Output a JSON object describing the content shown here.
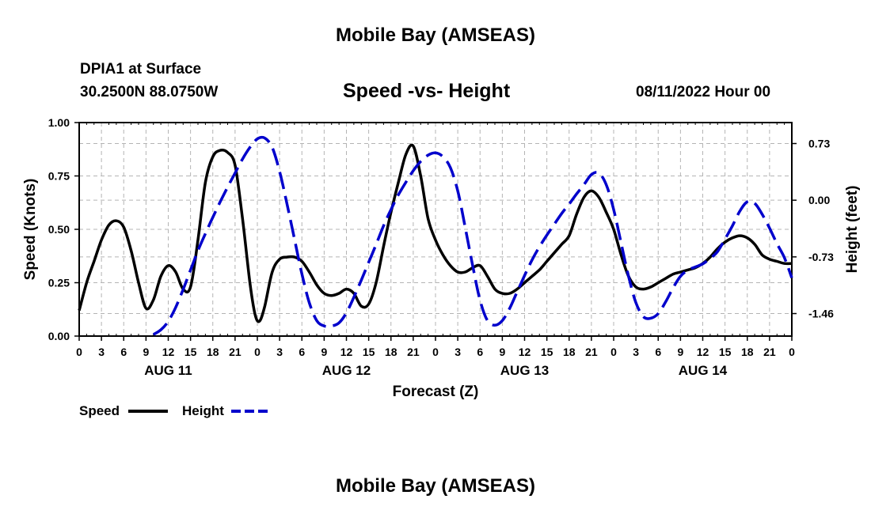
{
  "header": {
    "title": "Mobile Bay (AMSEAS)",
    "station": "DPIA1 at Surface",
    "coords": "30.2500N  88.0750W",
    "subtitle": "Speed -vs- Height",
    "datetime": "08/11/2022 Hour 00"
  },
  "footer": {
    "title": "Mobile Bay (AMSEAS)"
  },
  "chart_data": {
    "type": "line",
    "title": "Speed -vs- Height",
    "xlabel": "Forecast (Z)",
    "ylabel": "Speed (Knots)",
    "y2label": "Height (feet)",
    "xlim": [
      0,
      96
    ],
    "ylim": [
      0,
      1
    ],
    "y2lim": [
      -1.75,
      1.0
    ],
    "x_tick_values": [
      0,
      3,
      6,
      9,
      12,
      15,
      18,
      21,
      24,
      27,
      30,
      33,
      36,
      39,
      42,
      45,
      48,
      51,
      54,
      57,
      60,
      63,
      66,
      69,
      72,
      75,
      78,
      81,
      84,
      87,
      90,
      93,
      96
    ],
    "x_tick_labels": [
      "0",
      "3",
      "6",
      "9",
      "12",
      "15",
      "18",
      "21",
      "0",
      "3",
      "6",
      "9",
      "12",
      "15",
      "18",
      "21",
      "0",
      "3",
      "6",
      "9",
      "12",
      "15",
      "18",
      "21",
      "0",
      "3",
      "6",
      "9",
      "12",
      "15",
      "18",
      "21",
      "0"
    ],
    "y_ticks": [
      "0.00",
      "0.25",
      "0.50",
      "0.75",
      "1.00"
    ],
    "y_tick_values": [
      0,
      0.25,
      0.5,
      0.75,
      1.0
    ],
    "y2_ticks": [
      "-1.46",
      "-0.73",
      "0.00",
      "0.73"
    ],
    "y2_tick_values": [
      -1.46,
      -0.73,
      0.0,
      0.73
    ],
    "day_labels": [
      {
        "label": "AUG 11",
        "x": 12
      },
      {
        "label": "AUG 12",
        "x": 36
      },
      {
        "label": "AUG 13",
        "x": 60
      },
      {
        "label": "AUG 14",
        "x": 84
      }
    ],
    "grid": true,
    "legend_position": "bottom-left",
    "series": [
      {
        "name": "Speed",
        "axis": "left",
        "color": "#000000",
        "dash": "solid",
        "points": [
          [
            0,
            0.12
          ],
          [
            1,
            0.25
          ],
          [
            2,
            0.35
          ],
          [
            3,
            0.45
          ],
          [
            4,
            0.52
          ],
          [
            5,
            0.54
          ],
          [
            6,
            0.51
          ],
          [
            7,
            0.4
          ],
          [
            8,
            0.25
          ],
          [
            9,
            0.13
          ],
          [
            10,
            0.17
          ],
          [
            11,
            0.28
          ],
          [
            12,
            0.33
          ],
          [
            13,
            0.3
          ],
          [
            14,
            0.22
          ],
          [
            15,
            0.23
          ],
          [
            16,
            0.45
          ],
          [
            17,
            0.72
          ],
          [
            18,
            0.84
          ],
          [
            19,
            0.87
          ],
          [
            20,
            0.86
          ],
          [
            21,
            0.8
          ],
          [
            22,
            0.55
          ],
          [
            23,
            0.25
          ],
          [
            23.7,
            0.1
          ],
          [
            24.3,
            0.07
          ],
          [
            25,
            0.14
          ],
          [
            26,
            0.3
          ],
          [
            27,
            0.36
          ],
          [
            28,
            0.37
          ],
          [
            29,
            0.37
          ],
          [
            30,
            0.35
          ],
          [
            31,
            0.3
          ],
          [
            32,
            0.24
          ],
          [
            33,
            0.2
          ],
          [
            34,
            0.19
          ],
          [
            35,
            0.2
          ],
          [
            36,
            0.22
          ],
          [
            37,
            0.2
          ],
          [
            38,
            0.14
          ],
          [
            39,
            0.15
          ],
          [
            40,
            0.25
          ],
          [
            41,
            0.42
          ],
          [
            42,
            0.58
          ],
          [
            43,
            0.72
          ],
          [
            44,
            0.85
          ],
          [
            45,
            0.89
          ],
          [
            46,
            0.75
          ],
          [
            47,
            0.55
          ],
          [
            48,
            0.45
          ],
          [
            49,
            0.38
          ],
          [
            50,
            0.33
          ],
          [
            51,
            0.3
          ],
          [
            52,
            0.3
          ],
          [
            53,
            0.32
          ],
          [
            54,
            0.33
          ],
          [
            55,
            0.28
          ],
          [
            56,
            0.22
          ],
          [
            57,
            0.2
          ],
          [
            58,
            0.2
          ],
          [
            59,
            0.22
          ],
          [
            60,
            0.25
          ],
          [
            61,
            0.28
          ],
          [
            62,
            0.31
          ],
          [
            63,
            0.35
          ],
          [
            64,
            0.39
          ],
          [
            65,
            0.43
          ],
          [
            66,
            0.47
          ],
          [
            67,
            0.57
          ],
          [
            68,
            0.65
          ],
          [
            69,
            0.68
          ],
          [
            70,
            0.65
          ],
          [
            71,
            0.58
          ],
          [
            72,
            0.5
          ],
          [
            73,
            0.38
          ],
          [
            74,
            0.28
          ],
          [
            75,
            0.23
          ],
          [
            76,
            0.22
          ],
          [
            77,
            0.23
          ],
          [
            78,
            0.25
          ],
          [
            79,
            0.27
          ],
          [
            80,
            0.29
          ],
          [
            81,
            0.3
          ],
          [
            82,
            0.31
          ],
          [
            83,
            0.32
          ],
          [
            84,
            0.34
          ],
          [
            85,
            0.37
          ],
          [
            86,
            0.41
          ],
          [
            87,
            0.44
          ],
          [
            88,
            0.46
          ],
          [
            89,
            0.47
          ],
          [
            90,
            0.46
          ],
          [
            91,
            0.43
          ],
          [
            92,
            0.38
          ],
          [
            93,
            0.36
          ],
          [
            94,
            0.35
          ],
          [
            95,
            0.34
          ],
          [
            96,
            0.34
          ]
        ]
      },
      {
        "name": "Height",
        "axis": "right",
        "color": "#0000cc",
        "dash": "dashed",
        "points": [
          [
            0,
            -1.73
          ],
          [
            1,
            -1.67
          ],
          [
            2,
            -1.56
          ],
          [
            3,
            -1.38
          ],
          [
            4,
            -1.15
          ],
          [
            5,
            -0.9
          ],
          [
            6,
            -0.65
          ],
          [
            7,
            -0.43
          ],
          [
            8,
            -0.22
          ],
          [
            9,
            -0.02
          ],
          [
            10,
            0.17
          ],
          [
            11,
            0.35
          ],
          [
            12,
            0.53
          ],
          [
            13,
            0.68
          ],
          [
            14,
            0.79
          ],
          [
            15,
            0.8
          ],
          [
            16,
            0.68
          ],
          [
            17,
            0.37
          ],
          [
            18,
            -0.05
          ],
          [
            19,
            -0.5
          ],
          [
            20,
            -0.95
          ],
          [
            21,
            -1.32
          ],
          [
            22,
            -1.55
          ],
          [
            23,
            -1.62
          ],
          [
            24,
            -1.62
          ],
          [
            25,
            -1.58
          ],
          [
            26,
            -1.45
          ],
          [
            27,
            -1.25
          ],
          [
            28,
            -1.03
          ],
          [
            29,
            -0.8
          ],
          [
            30,
            -0.57
          ],
          [
            31,
            -0.33
          ],
          [
            32,
            -0.12
          ],
          [
            33,
            0.07
          ],
          [
            34,
            0.23
          ],
          [
            35,
            0.38
          ],
          [
            36,
            0.5
          ],
          [
            37,
            0.58
          ],
          [
            38,
            0.61
          ],
          [
            39,
            0.56
          ],
          [
            40,
            0.42
          ],
          [
            41,
            0.12
          ],
          [
            42,
            -0.35
          ],
          [
            43,
            -0.84
          ],
          [
            44,
            -1.29
          ],
          [
            45,
            -1.55
          ],
          [
            46,
            -1.61
          ],
          [
            47,
            -1.55
          ],
          [
            48,
            -1.39
          ],
          [
            49,
            -1.18
          ],
          [
            50,
            -0.97
          ],
          [
            51,
            -0.77
          ],
          [
            52,
            -0.6
          ],
          [
            53,
            -0.45
          ],
          [
            54,
            -0.31
          ],
          [
            55,
            -0.17
          ],
          [
            56,
            -0.05
          ],
          [
            57,
            0.08
          ],
          [
            58,
            0.2
          ],
          [
            59,
            0.33
          ],
          [
            60,
            0.35
          ],
          [
            61,
            0.2
          ],
          [
            62,
            -0.12
          ],
          [
            63,
            -0.55
          ],
          [
            64,
            -0.98
          ],
          [
            65,
            -1.32
          ],
          [
            66,
            -1.5
          ],
          [
            67,
            -1.52
          ],
          [
            68,
            -1.46
          ],
          [
            69,
            -1.31
          ],
          [
            70,
            -1.13
          ],
          [
            71,
            -0.98
          ],
          [
            72,
            -0.9
          ],
          [
            73,
            -0.86
          ],
          [
            74,
            -0.82
          ],
          [
            75,
            -0.75
          ],
          [
            76,
            -0.66
          ],
          [
            77,
            -0.5
          ],
          [
            78,
            -0.33
          ],
          [
            79,
            -0.14
          ],
          [
            80,
            -0.02
          ],
          [
            81,
            -0.04
          ],
          [
            82,
            -0.18
          ],
          [
            83,
            -0.36
          ],
          [
            84,
            -0.56
          ],
          [
            85,
            -0.74
          ],
          [
            86,
            -1.0
          ]
        ]
      }
    ],
    "series_x_shift": {
      "Height": 10
    }
  },
  "legend": {
    "speed_label": "Speed",
    "height_label": "Height"
  }
}
